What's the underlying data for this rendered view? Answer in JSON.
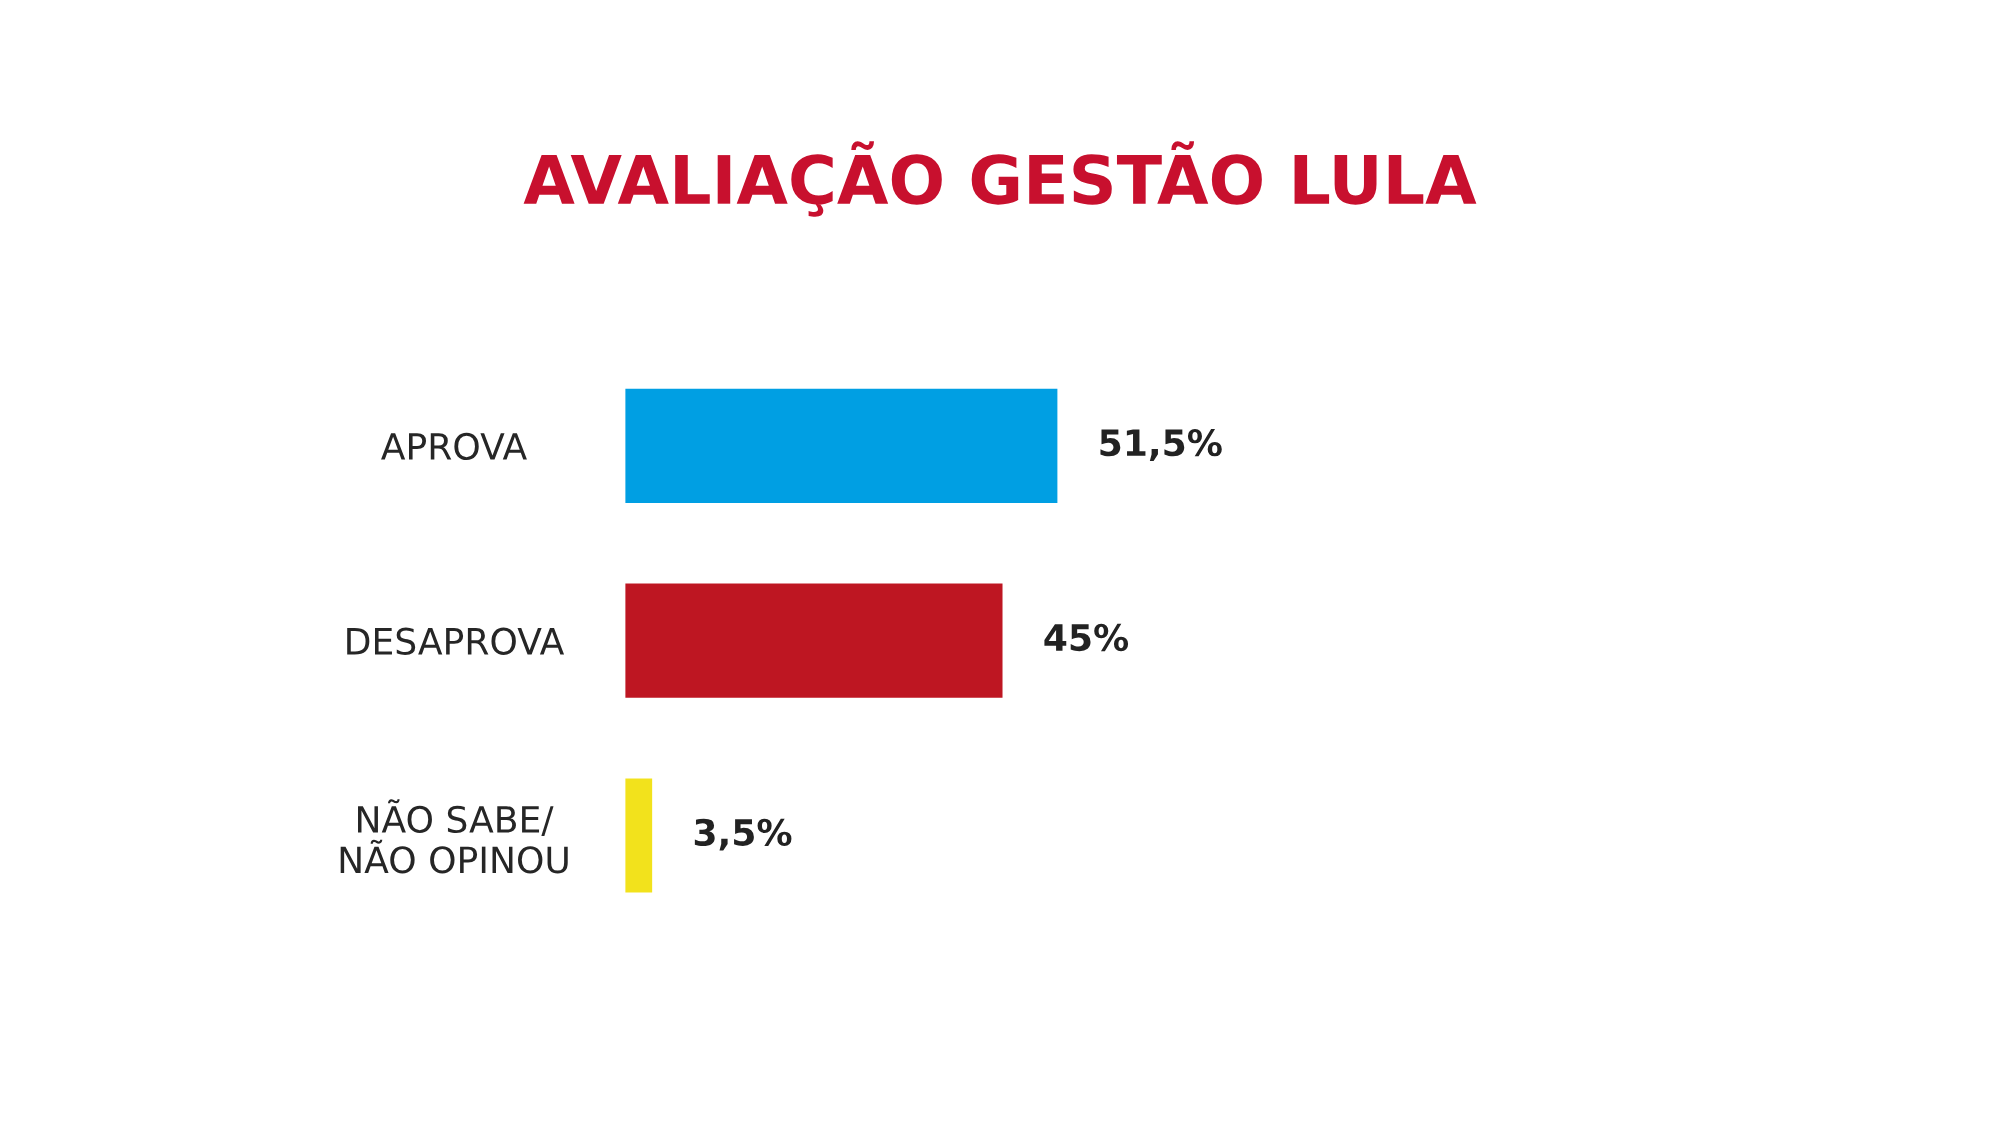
{
  "chart_data": {
    "type": "bar",
    "orientation": "horizontal",
    "title": "AVALIAÇÃO GESTÃO LULA",
    "categories": [
      "APROVA",
      "DESAPROVA",
      "NÃO SABE/\nNÃO OPINOU"
    ],
    "values": [
      51.5,
      45,
      3.5
    ],
    "colors": [
      "#009fe3",
      "#be1622",
      "#f2e21c"
    ],
    "value_labels": [
      "51,5%",
      "45%",
      "3,5%"
    ],
    "grid": false,
    "legend": false
  }
}
